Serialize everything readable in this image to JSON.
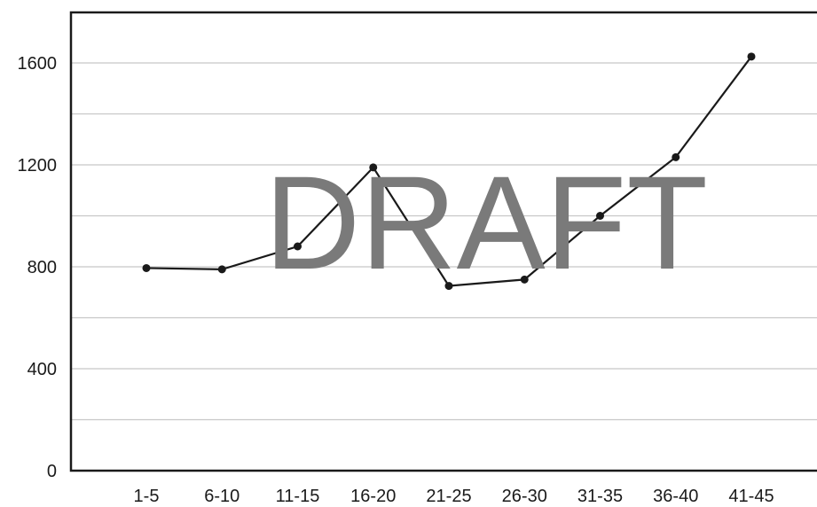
{
  "chart_data": {
    "type": "line",
    "categories": [
      "1-5",
      "6-10",
      "11-15",
      "16-20",
      "21-25",
      "26-30",
      "31-35",
      "36-40",
      "41-45"
    ],
    "series": [
      {
        "values": [
          795,
          790,
          880,
          1190,
          725,
          750,
          1000,
          1230,
          1625
        ]
      }
    ],
    "ylim": [
      0,
      1800
    ],
    "yticks": [
      0,
      400,
      800,
      1200,
      1600
    ],
    "ytick_labels": [
      "0",
      "400",
      "800",
      "1200",
      "1600"
    ],
    "grid": true,
    "title": "",
    "xlabel": "",
    "ylabel": "",
    "line_color": "#1a1a1a",
    "grid_color": "#c8c8c8"
  },
  "watermark": {
    "text": "DRAFT",
    "color": "#7a7a7a"
  }
}
